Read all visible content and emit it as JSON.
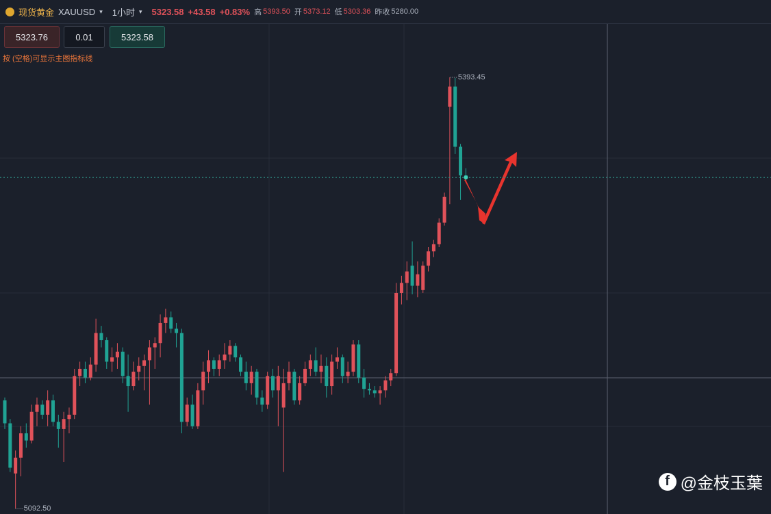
{
  "header": {
    "name": "现货黄金",
    "symbol": "XAUUSD",
    "period": "1小时",
    "price": "5323.58",
    "change": "+43.58",
    "change_pct": "+0.83%",
    "high_label": "高",
    "high": "5393.50",
    "open_label": "开",
    "open": "5373.12",
    "low_label": "低",
    "low": "5303.36",
    "prev_close_label": "昨收",
    "prev_close": "5280.00"
  },
  "order_panel": {
    "sell": "5323.76",
    "lots": "0.01",
    "buy": "5323.58",
    "hint": "按 (空格)可显示主图指标线"
  },
  "watermark": "@金枝玉葉",
  "chart_data": {
    "type": "candlestick",
    "up_color": "#e0525a",
    "down_color": "#20a394",
    "ylim": [
      5088.7,
      5431.2
    ],
    "high_marker": {
      "value": 5393.45,
      "label": "5393.45"
    },
    "low_marker": {
      "value": 5092.5,
      "label": "5092.50"
    },
    "open": [
      5168,
      5152,
      5117,
      5128,
      5145,
      5140,
      5160,
      5165,
      5158,
      5168,
      5153,
      5148,
      5155,
      5158,
      5185,
      5190,
      5184,
      5193,
      5215,
      5210,
      5195,
      5198,
      5202,
      5185,
      5178,
      5188,
      5192,
      5196,
      5205,
      5208,
      5222,
      5226,
      5218,
      5215,
      5153,
      5165,
      5150,
      5175,
      5188,
      5196,
      5190,
      5196,
      5200,
      5206,
      5198,
      5188,
      5180,
      5188,
      5170,
      5165,
      5185,
      5175,
      5163,
      5180,
      5188,
      5168,
      5180,
      5190,
      5196,
      5188,
      5192,
      5178,
      5195,
      5198,
      5185,
      5188,
      5207,
      5184,
      5176,
      5175,
      5173,
      5175,
      5182,
      5187,
      5243,
      5250,
      5262,
      5248,
      5245,
      5262,
      5272,
      5277,
      5292,
      5373,
      5387,
      5345,
      5325
    ],
    "high": [
      5170,
      5155,
      5133,
      5150,
      5152,
      5165,
      5170,
      5168,
      5175,
      5172,
      5158,
      5160,
      5163,
      5190,
      5195,
      5195,
      5198,
      5225,
      5220,
      5212,
      5205,
      5208,
      5205,
      5200,
      5195,
      5198,
      5200,
      5210,
      5212,
      5228,
      5232,
      5230,
      5222,
      5218,
      5170,
      5172,
      5180,
      5195,
      5203,
      5198,
      5200,
      5208,
      5210,
      5208,
      5200,
      5195,
      5192,
      5190,
      5175,
      5188,
      5190,
      5192,
      5190,
      5195,
      5190,
      5185,
      5195,
      5200,
      5205,
      5200,
      5198,
      5200,
      5205,
      5200,
      5195,
      5210,
      5210,
      5190,
      5180,
      5178,
      5178,
      5185,
      5190,
      5250,
      5255,
      5265,
      5279,
      5265,
      5265,
      5275,
      5280,
      5295,
      5313,
      5393.45,
      5393,
      5347,
      5330
    ],
    "low": [
      5148,
      5118,
      5092.5,
      5115,
      5135,
      5138,
      5150,
      5155,
      5150,
      5150,
      5135,
      5125,
      5145,
      5155,
      5178,
      5180,
      5182,
      5188,
      5205,
      5190,
      5188,
      5190,
      5180,
      5160,
      5175,
      5182,
      5175,
      5165,
      5190,
      5198,
      5215,
      5215,
      5205,
      5145,
      5150,
      5148,
      5148,
      5165,
      5180,
      5185,
      5185,
      5190,
      5195,
      5195,
      5185,
      5175,
      5172,
      5165,
      5160,
      5162,
      5170,
      5150,
      5118,
      5175,
      5165,
      5165,
      5178,
      5185,
      5185,
      5180,
      5170,
      5172,
      5190,
      5180,
      5180,
      5185,
      5180,
      5170,
      5172,
      5170,
      5165,
      5170,
      5178,
      5185,
      5235,
      5238,
      5242,
      5240,
      5243,
      5258,
      5268,
      5275,
      5290,
      5305,
      5340,
      5308,
      5320
    ],
    "close": [
      5152,
      5121,
      5128,
      5145,
      5140,
      5160,
      5165,
      5158,
      5168,
      5153,
      5148,
      5155,
      5158,
      5185,
      5190,
      5184,
      5193,
      5215,
      5210,
      5195,
      5198,
      5202,
      5185,
      5178,
      5188,
      5192,
      5196,
      5205,
      5208,
      5222,
      5226,
      5218,
      5215,
      5153,
      5165,
      5150,
      5175,
      5188,
      5196,
      5190,
      5196,
      5200,
      5206,
      5198,
      5188,
      5180,
      5188,
      5170,
      5165,
      5185,
      5175,
      5185,
      5180,
      5188,
      5168,
      5180,
      5190,
      5196,
      5188,
      5192,
      5178,
      5195,
      5198,
      5185,
      5188,
      5207,
      5184,
      5176,
      5175,
      5173,
      5175,
      5182,
      5187,
      5243,
      5250,
      5258,
      5248,
      5256,
      5262,
      5272,
      5277,
      5292,
      5310,
      5387,
      5345,
      5325,
      5323.58
    ]
  }
}
